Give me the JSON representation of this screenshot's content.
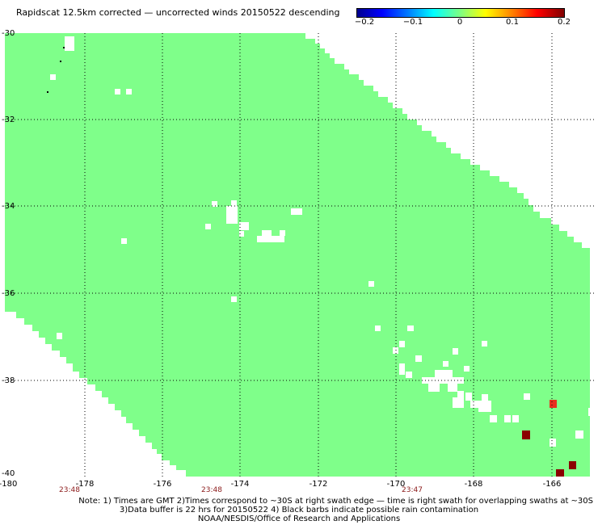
{
  "title": "Rapidscat 12.5km corrected — uncorrected winds 20150522 descending",
  "colorbar": {
    "ticks": [
      "−0.2",
      "−0.1",
      "0",
      "0.1",
      "0.2"
    ],
    "colors": [
      "#00008f",
      "#0000ff",
      "#00ffff",
      "#80ff80",
      "#ffff00",
      "#ff0000",
      "#800000"
    ]
  },
  "map": {
    "lon_ticks": [
      "-180",
      "-178",
      "-176",
      "-174",
      "-172",
      "-170",
      "-168",
      "-166"
    ],
    "lat_ticks": [
      "-30",
      "-32",
      "-34",
      "-36",
      "-38",
      "-40"
    ],
    "times": [
      "23:48",
      "23:48",
      "23:47"
    ],
    "swath_color": "#7fff8a",
    "anomaly_colors": [
      "#e8301e",
      "#8b0000"
    ]
  },
  "note": {
    "line1": "Note: 1) Times are GMT 2)Times correspond to ~30S at right swath edge — time is right swath for overlapping swaths at ~30S",
    "line2": "3)Data buffer is 22 hrs for 20150522 4) Black barbs indicate possible rain contamination",
    "line3": "NOAA/NESDIS/Office of Research and Applications"
  }
}
